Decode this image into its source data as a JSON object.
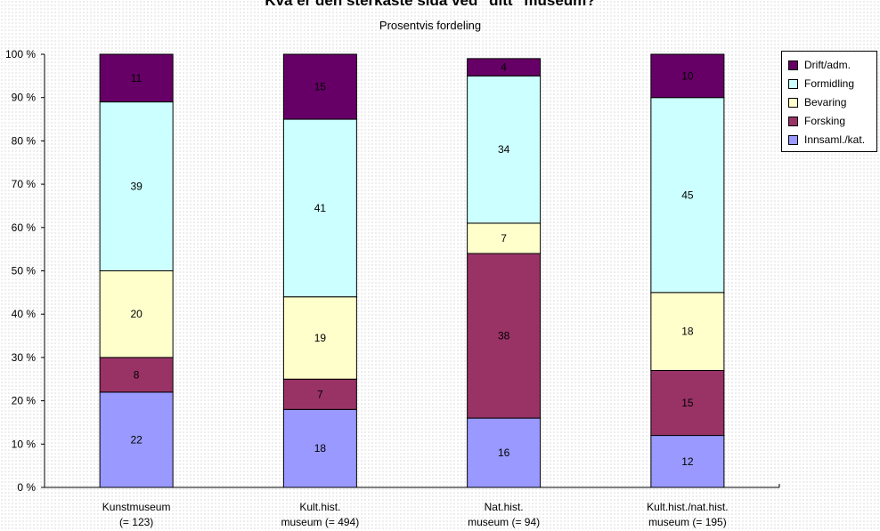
{
  "chart_data": {
    "type": "bar",
    "stacked": true,
    "title": "Kva er den sterkaste sida ved \"ditt\" museum?",
    "subtitle": "Prosentvis fordeling",
    "xlabel": "",
    "ylabel": "",
    "ylim": [
      0,
      100
    ],
    "yticks": [
      "0 %",
      "10 %",
      "20 %",
      "30 %",
      "40 %",
      "50 %",
      "60 %",
      "70 %",
      "80 %",
      "90 %",
      "100 %"
    ],
    "categories": [
      [
        "Kunstmuseum",
        "(= 123)"
      ],
      [
        "Kult.hist.",
        "museum (= 494)"
      ],
      [
        "Nat.hist.",
        "museum (= 94)"
      ],
      [
        "Kult.hist./nat.hist.",
        "museum (= 195)"
      ]
    ],
    "series": [
      {
        "name": "Innsaml./kat.",
        "color": "#9999ff",
        "values": [
          22,
          18,
          16,
          12
        ]
      },
      {
        "name": "Forsking",
        "color": "#993366",
        "values": [
          8,
          7,
          38,
          15
        ]
      },
      {
        "name": "Bevaring",
        "color": "#ffffcc",
        "values": [
          20,
          19,
          7,
          18
        ]
      },
      {
        "name": "Formidling",
        "color": "#ccffff",
        "values": [
          39,
          41,
          34,
          45
        ]
      },
      {
        "name": "Drift/adm.",
        "color": "#660066",
        "values": [
          11,
          15,
          4,
          10
        ]
      }
    ],
    "legend": [
      "Drift/adm.",
      "Formidling",
      "Bevaring",
      "Forsking",
      "Innsaml./kat."
    ],
    "legend_position": "top-right",
    "grid": false
  }
}
